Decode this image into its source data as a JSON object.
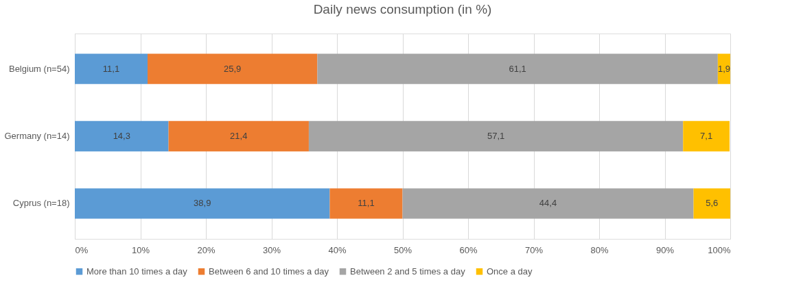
{
  "chart_data": {
    "type": "bar",
    "orientation": "horizontal",
    "stacked": true,
    "title": "Daily news consumption (in %)",
    "categories": [
      "Belgium (n=54)",
      "Germany (n=14)",
      "Cyprus (n=18)"
    ],
    "series": [
      {
        "name": "More than 10 times a day",
        "color": "#5b9bd5",
        "values": [
          11.1,
          14.3,
          38.9
        ],
        "value_labels": [
          "11,1",
          "14,3",
          "38,9"
        ]
      },
      {
        "name": "Between 6 and 10 times a day",
        "color": "#ed7d31",
        "values": [
          25.9,
          21.4,
          11.1
        ],
        "value_labels": [
          "25,9",
          "21,4",
          "11,1"
        ]
      },
      {
        "name": "Between 2 and 5 times a day",
        "color": "#a5a5a5",
        "values": [
          61.1,
          57.1,
          44.4
        ],
        "value_labels": [
          "61,1",
          "57,1",
          "44,4"
        ]
      },
      {
        "name": "Once a day",
        "color": "#ffc000",
        "values": [
          1.9,
          7.1,
          5.6
        ],
        "value_labels": [
          "1,9",
          "7,1",
          "5,6"
        ]
      }
    ],
    "xlim": [
      0,
      100
    ],
    "xticks": [
      {
        "value": 0,
        "label": "0%"
      },
      {
        "value": 10,
        "label": "10%"
      },
      {
        "value": 20,
        "label": "20%"
      },
      {
        "value": 30,
        "label": "30%"
      },
      {
        "value": 40,
        "label": "40%"
      },
      {
        "value": 50,
        "label": "50%"
      },
      {
        "value": 60,
        "label": "60%"
      },
      {
        "value": 70,
        "label": "70%"
      },
      {
        "value": 80,
        "label": "80%"
      },
      {
        "value": 90,
        "label": "90%"
      },
      {
        "value": 100,
        "label": "100%"
      }
    ],
    "grid": "x",
    "legend": "bottom"
  }
}
